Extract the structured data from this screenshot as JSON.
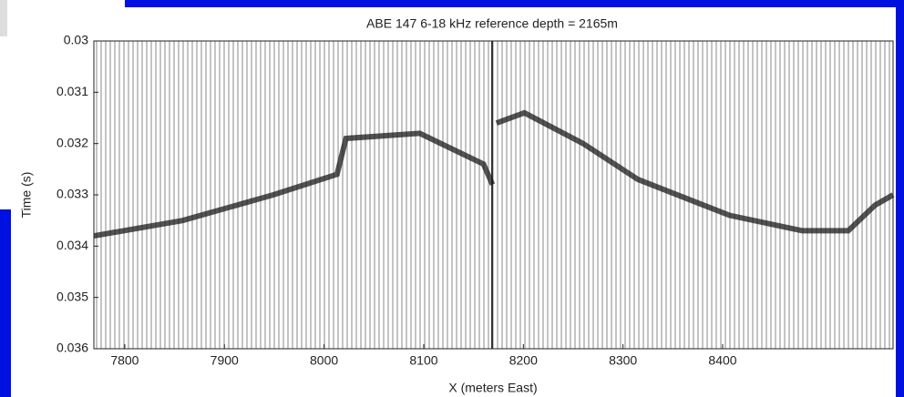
{
  "chart_data": {
    "type": "wiggle",
    "title": "ABE 147 6-18 kHz reference depth = 2165m",
    "x_label": "X (meters East)",
    "y_label": "Time (s)",
    "xlim": [
      7769,
      8571
    ],
    "ylim": [
      0.03,
      0.036
    ],
    "y_direction": "reverse",
    "xticks": [
      7800,
      7900,
      8000,
      8100,
      8200,
      8300,
      8400
    ],
    "yticks": [
      0.03,
      0.031,
      0.032,
      0.033,
      0.034,
      0.035,
      0.036
    ],
    "series": [
      {
        "color": "#1a1a1a",
        "x": [
          7769,
          7858,
          7949,
          8013,
          8022,
          8096,
          8160,
          8169,
          null,
          8173,
          8201,
          8260,
          8315,
          8407,
          8480,
          8526,
          8553,
          8571
        ],
        "values": [
          0.0338,
          0.0335,
          0.033,
          0.0326,
          0.0319,
          0.0318,
          0.0324,
          0.0328,
          null,
          0.0316,
          0.0314,
          0.032,
          0.0327,
          0.0334,
          0.0337,
          0.0337,
          0.0332,
          0.033
        ]
      }
    ]
  }
}
